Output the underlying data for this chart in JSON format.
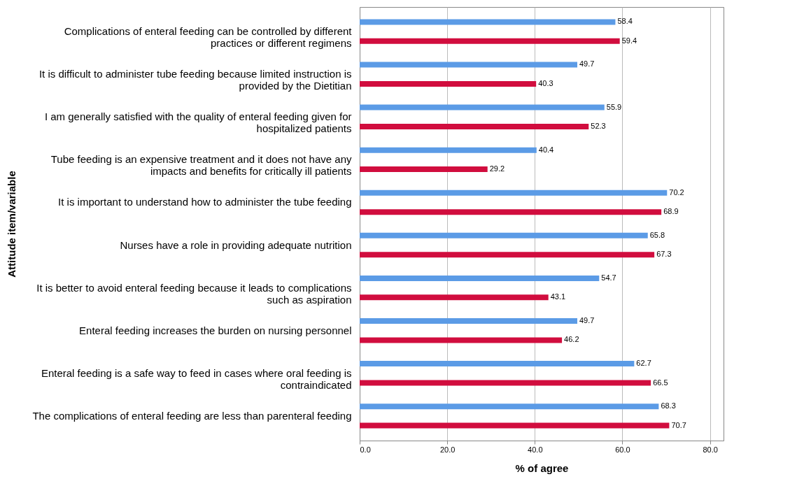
{
  "chart_data": {
    "type": "bar",
    "orientation": "horizontal",
    "xlabel": "% of agree",
    "ylabel": "Attitude item/variable",
    "categories": [
      "Complications of enteral feeding can be controlled by different\npractices or different regimens",
      "It is difficult to administer tube feeding because limited instruction is\nprovided by the Dietitian",
      "I am generally satisfied with the quality of enteral feeding given for\nhospitalized patients",
      "Tube feeding is an expensive treatment and it does not have any\nimpacts and benefits for critically ill patients",
      "It is important to understand how to administer the tube feeding",
      "Nurses have a role in providing adequate nutrition",
      "It is better to avoid enteral feeding because it leads to complications\nsuch as aspiration",
      "Enteral feeding increases the burden on nursing personnel",
      "Enteral feeding is a safe way to feed in cases where oral feeding is\ncontraindicated",
      "The complications of enteral feeding are less than parenteral feeding"
    ],
    "series": [
      {
        "color": "#5b9be6",
        "values": [
          58.4,
          49.7,
          55.9,
          40.4,
          70.2,
          65.8,
          54.7,
          49.7,
          62.7,
          68.3
        ]
      },
      {
        "color": "#d10d3e",
        "values": [
          59.4,
          40.3,
          52.3,
          29.2,
          68.9,
          67.3,
          43.1,
          46.2,
          66.5,
          70.7
        ]
      }
    ],
    "xlim": [
      0,
      83.1
    ],
    "xticks": [
      {
        "value": 0,
        "label": "0.0"
      },
      {
        "value": 20,
        "label": "20.0"
      },
      {
        "value": 40,
        "label": "40.0"
      },
      {
        "value": 60,
        "label": "60.0"
      },
      {
        "value": 80,
        "label": "80.0"
      }
    ],
    "grid": "x",
    "data_labels": true
  }
}
